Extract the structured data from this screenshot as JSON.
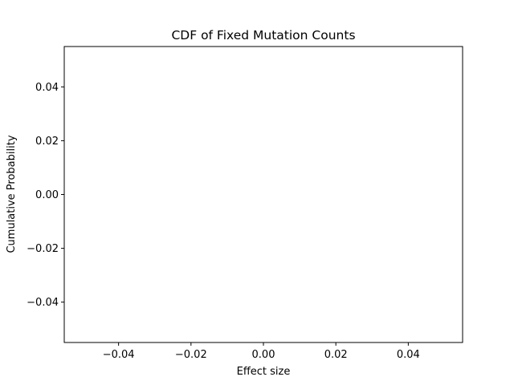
{
  "chart_data": {
    "type": "line",
    "title": "CDF of Fixed Mutation Counts",
    "xlabel": "Effect size",
    "ylabel": "Cumulative Probability",
    "xlim": [
      -0.055,
      0.055
    ],
    "ylim": [
      -0.055,
      0.055
    ],
    "grid": false,
    "legend": "none",
    "x_ticks": [
      {
        "value": -0.04,
        "label": "−0.04"
      },
      {
        "value": -0.02,
        "label": "−0.02"
      },
      {
        "value": 0.0,
        "label": "0.00"
      },
      {
        "value": 0.02,
        "label": "0.02"
      },
      {
        "value": 0.04,
        "label": "0.04"
      }
    ],
    "y_ticks": [
      {
        "value": -0.04,
        "label": "−0.04"
      },
      {
        "value": -0.02,
        "label": "−0.02"
      },
      {
        "value": 0.0,
        "label": "0.00"
      },
      {
        "value": 0.02,
        "label": "0.02"
      },
      {
        "value": 0.04,
        "label": "0.04"
      }
    ],
    "series": [],
    "colors": {
      "axis": "#000000",
      "background": "#ffffff"
    }
  }
}
